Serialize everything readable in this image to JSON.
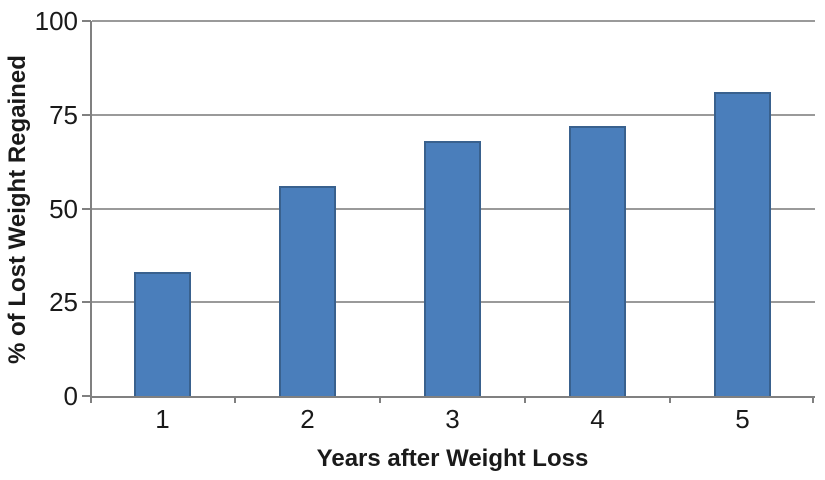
{
  "chart_data": {
    "type": "bar",
    "title": "",
    "xlabel": "Years after Weight Loss",
    "ylabel": "% of Lost Weight Regained",
    "categories": [
      "1",
      "2",
      "3",
      "4",
      "5"
    ],
    "values": [
      33,
      56,
      68,
      72,
      81
    ],
    "ylim": [
      0,
      100
    ],
    "yticks": [
      0,
      25,
      50,
      75,
      100
    ],
    "grid": "horizontal",
    "legend_position": "none",
    "colors": {
      "bar_fill": "#4a7ebb",
      "bar_border": "#39618e",
      "gridline": "#9a9a9a",
      "axis": "#808080",
      "text": "#1a1a1a",
      "background": "#ffffff"
    }
  }
}
